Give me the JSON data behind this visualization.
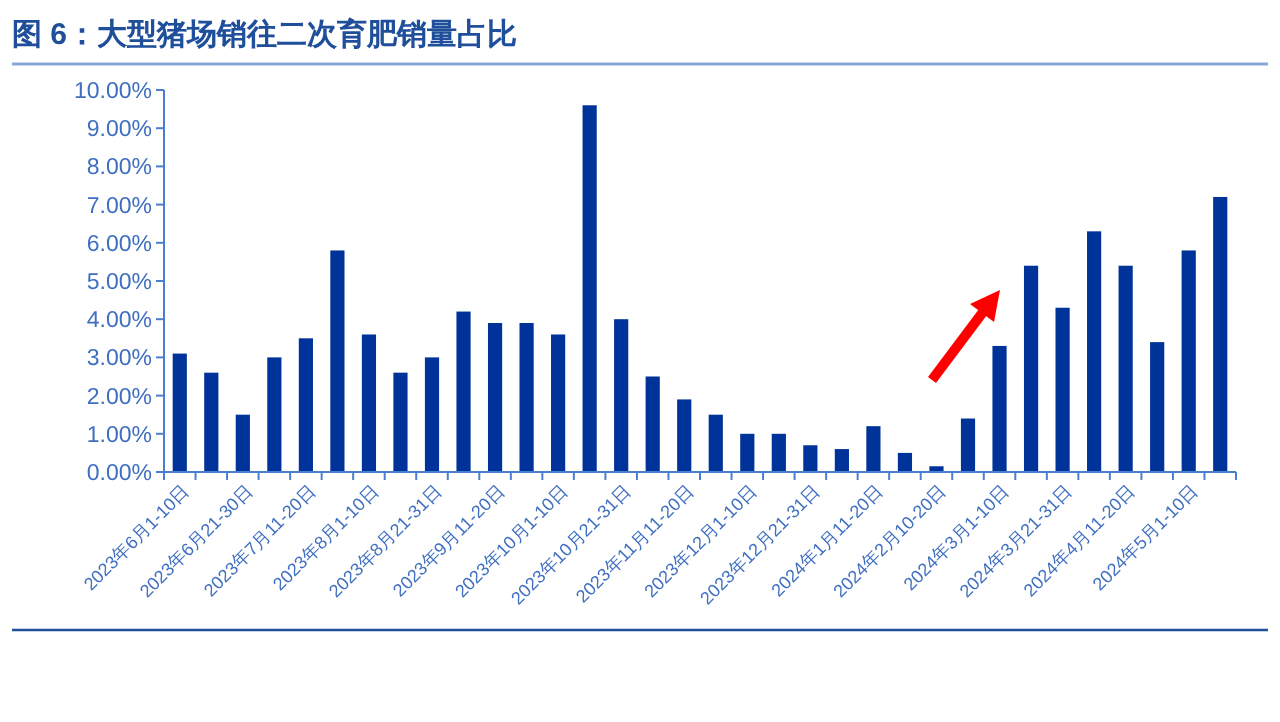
{
  "chart_data": {
    "type": "bar",
    "title": "图 6：大型猪场销往二次育肥销量占比",
    "categories": [
      "2023年6月1-10日",
      null,
      "2023年6月21-30日",
      null,
      "2023年7月11-20日",
      null,
      "2023年8月1-10日",
      null,
      "2023年8月21-31日",
      null,
      "2023年9月11-20日",
      null,
      "2023年10月1-10日",
      null,
      "2023年10月21-31日",
      null,
      "2023年11月11-20日",
      null,
      "2023年12月1-10日",
      null,
      "2023年12月21-31日",
      null,
      "2024年1月11-20日",
      null,
      "2024年2月10-20日",
      null,
      "2024年3月1-10日",
      null,
      "2024年3月21-31日",
      null,
      "2024年4月11-20日",
      null,
      "2024年5月1-10日",
      null
    ],
    "values": [
      3.1,
      2.6,
      1.5,
      3.0,
      3.5,
      5.8,
      3.6,
      2.6,
      3.0,
      4.2,
      3.9,
      3.9,
      3.6,
      9.6,
      4.0,
      2.5,
      1.9,
      1.5,
      1.0,
      1.0,
      0.7,
      0.6,
      1.2,
      0.5,
      0.15,
      1.4,
      3.3,
      5.4,
      4.3,
      6.3,
      5.4,
      3.4,
      5.8,
      7.2
    ],
    "color": "#003399",
    "ylim": [
      0,
      10
    ],
    "yticks": [
      {
        "value": 0,
        "label": "0.00%"
      },
      {
        "value": 1,
        "label": "1.00%"
      },
      {
        "value": 2,
        "label": "2.00%"
      },
      {
        "value": 3,
        "label": "3.00%"
      },
      {
        "value": 4,
        "label": "4.00%"
      },
      {
        "value": 5,
        "label": "5.00%"
      },
      {
        "value": 6,
        "label": "6.00%"
      },
      {
        "value": 7,
        "label": "7.00%"
      },
      {
        "value": 8,
        "label": "8.00%"
      },
      {
        "value": 9,
        "label": "9.00%"
      },
      {
        "value": 10,
        "label": "10.00%"
      }
    ],
    "grid": false
  }
}
